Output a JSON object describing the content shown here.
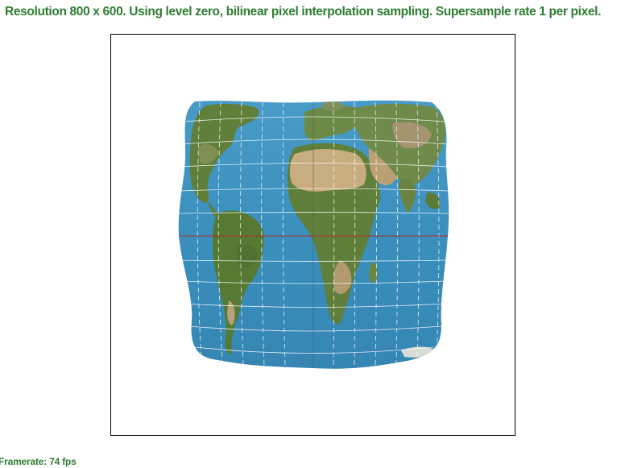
{
  "header": {
    "resolution_info": "Resolution 800 x 600. Using level zero, bilinear pixel interpolation sampling. Supersample rate 1 per pixel."
  },
  "footer": {
    "framerate": "Framerate: 74 fps"
  },
  "viewport": {
    "content": "projected-world-map",
    "colors": {
      "ocean": "#3a8fbd",
      "land_green": "#5f7f3a",
      "land_desert": "#c8ad80",
      "graticule": "#ffffff",
      "equator": "#b03030",
      "frame_border": "#000000",
      "status_text": "#2e7d32"
    }
  }
}
